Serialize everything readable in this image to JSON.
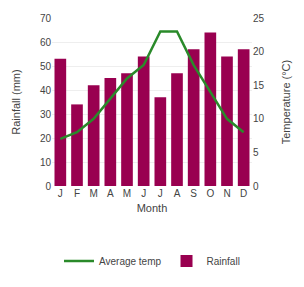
{
  "chart_data": {
    "type": "bar",
    "xlabel": "Month",
    "ylabel": "Rainfall (mm)",
    "y2label": "Temperature (°C)",
    "categories": [
      "J",
      "F",
      "M",
      "A",
      "M",
      "J",
      "J",
      "A",
      "S",
      "O",
      "N",
      "D"
    ],
    "series": [
      {
        "name": "Rainfall",
        "type": "bar",
        "color": "#990050",
        "values": [
          53,
          34,
          42,
          45,
          47,
          54,
          37,
          47,
          57,
          64,
          54,
          57
        ]
      },
      {
        "name": "Average temp",
        "type": "line",
        "color": "#2a8a2a",
        "axis": "y2",
        "values": [
          7,
          8,
          10,
          13,
          16,
          18,
          23,
          23,
          18,
          14,
          10,
          8
        ]
      }
    ],
    "ylim": [
      0,
      70
    ],
    "yticks": [
      0,
      10,
      20,
      30,
      40,
      50,
      60,
      70
    ],
    "y2lim": [
      0,
      25
    ],
    "y2ticks": [
      0,
      5,
      10,
      15,
      20,
      25
    ],
    "grid": true,
    "legend": "bottom"
  }
}
